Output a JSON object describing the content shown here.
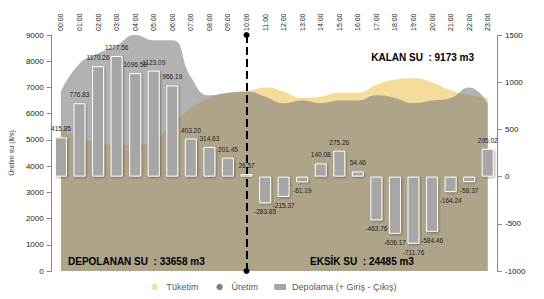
{
  "chart_data": {
    "type": "combo",
    "y_label": "Üretim su (lt/s)",
    "categories": [
      "00:00",
      "01:00",
      "02:00",
      "03:00",
      "04:00",
      "05:00",
      "06:00",
      "07:00",
      "08:00",
      "09:00",
      "10:00",
      "11:00",
      "12:00",
      "13:00",
      "14:00",
      "15:00",
      "16:00",
      "17:00",
      "18:00",
      "19:00",
      "20:00",
      "21:00",
      "22:00",
      "23:00"
    ],
    "series": [
      {
        "name": "Tüketim",
        "type": "area",
        "color": "#f6dc9c",
        "values": [
          5400,
          5100,
          4900,
          4800,
          4800,
          5000,
          5600,
          6200,
          6600,
          6800,
          6850,
          7000,
          6850,
          6600,
          6650,
          6800,
          6800,
          7100,
          7300,
          7350,
          7200,
          6900,
          6700,
          6600
        ]
      },
      {
        "name": "Üretim",
        "type": "area",
        "color": "#7f7f7f",
        "values": [
          6850,
          7900,
          8300,
          8600,
          9000,
          8800,
          8800,
          7400,
          6700,
          6800,
          6850,
          6650,
          6400,
          6500,
          6400,
          6500,
          6500,
          6700,
          6600,
          6400,
          6500,
          6600,
          7000,
          6400
        ]
      },
      {
        "name": "Depolama (+ Giriş - Çıkış)",
        "type": "bar",
        "color": "#a6a6a6",
        "axis": "y2",
        "data_labels": true,
        "values": [
          415.85,
          776.83,
          1170.26,
          1277.56,
          1096.58,
          1123.09,
          966.19,
          403.2,
          314.63,
          201.45,
          26.57,
          -283.85,
          -215.37,
          -61.19,
          140.08,
          275.26,
          54.46,
          -463.76,
          -606.17,
          -711.76,
          -584.46,
          -164.24,
          -58.37,
          295.02
        ],
        "value_labels": [
          "415.85",
          "776.83",
          "1170.26",
          "1277.56",
          "1096.58",
          "1123.09",
          "966.19",
          "403.20",
          "314.63",
          "201.45",
          "26.57",
          "-283.85",
          "-215.37",
          "-61.19",
          "140.08",
          "275.26",
          "54.46",
          "-463.76",
          "-606.17",
          "-711.76",
          "-584.46",
          "-164.24",
          "-58.37",
          "295.02"
        ]
      }
    ],
    "ylim": [
      0,
      9000
    ],
    "yticks": [
      0,
      1000,
      2000,
      3000,
      4000,
      5000,
      6000,
      7000,
      8000,
      9000
    ],
    "y2lim": [
      -1000,
      1500
    ],
    "y2ticks": [
      -1000,
      -500,
      0,
      500,
      1000,
      1500
    ],
    "vertical_line": "10:00",
    "annotations": [
      "KALAN SU  : 9173 m3",
      "DEPOLANAN SU  : 33658 m3",
      "EKSİK SU  : 24485 m3"
    ],
    "grid": false,
    "legend": "bottom"
  }
}
